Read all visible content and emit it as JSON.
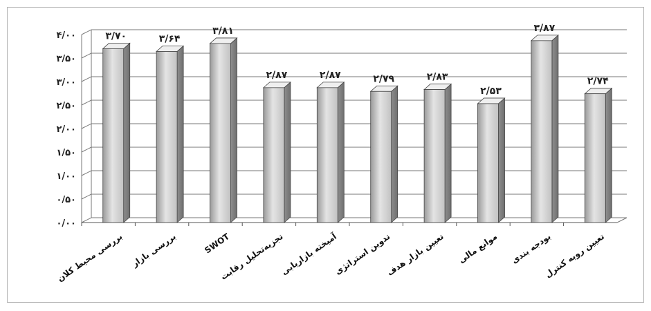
{
  "chart_data": {
    "type": "bar",
    "title": "",
    "xlabel": "",
    "ylabel": "",
    "ylim": [
      0,
      4
    ],
    "grid": true,
    "yticks": [
      0,
      0.5,
      1,
      1.5,
      2,
      2.5,
      3,
      3.5,
      4
    ],
    "ytick_labels": [
      "۰/۰۰",
      "۰/۵۰",
      "۱/۰۰",
      "۱/۵۰",
      "۲/۰۰",
      "۲/۵۰",
      "۳/۰۰",
      "۳/۵۰",
      "۴/۰۰"
    ],
    "categories": [
      "بررسی محیط کلان",
      "بررسی بازار",
      "SWOT",
      "تجزیه‌تحلیل رقابت",
      "آمیخته بازاریابی",
      "تدوین استراتژی",
      "تعیین بازار هدف",
      "موانع مالی",
      "بودجه بندی",
      "تعیین رویه کنترل"
    ],
    "values": [
      3.7,
      3.64,
      3.81,
      2.87,
      2.87,
      2.79,
      2.83,
      2.53,
      3.87,
      2.74
    ],
    "value_labels": [
      "۳/۷۰",
      "۳/۶۴",
      "۳/۸۱",
      "۲/۸۷",
      "۲/۸۷",
      "۲/۷۹",
      "۲/۸۳",
      "۲/۵۳",
      "۳/۸۷",
      "۲/۷۴"
    ]
  }
}
